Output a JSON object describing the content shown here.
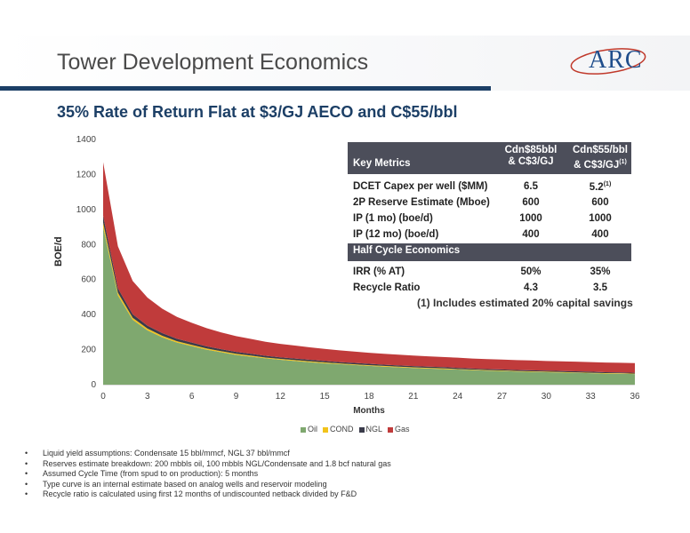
{
  "header": {
    "title": "Tower Development Economics",
    "logo_text": "ARC",
    "subtitle": "35% Rate of Return Flat at $3/GJ AECO and C$55/bbl"
  },
  "metrics": {
    "header_label": "Key Metrics",
    "col1_line1": "Cdn$85bbl",
    "col1_line2": "& C$3/GJ",
    "col2_line1": "Cdn$55/bbl",
    "col2_line2": "& C$3/GJ",
    "col2_sup": "(1)",
    "rows": [
      {
        "label": "DCET Capex per well ($MM)",
        "v1": "6.5",
        "v2": "5.2",
        "v2_sup": "(1)"
      },
      {
        "label": "2P Reserve Estimate (Mboe)",
        "v1": "600",
        "v2": "600"
      },
      {
        "label": "IP (1 mo) (boe/d)",
        "v1": "1000",
        "v2": "1000"
      },
      {
        "label": "IP (12 mo) (boe/d)",
        "v1": "400",
        "v2": "400"
      }
    ],
    "section2_label": "Half Cycle Economics",
    "rows2": [
      {
        "label": "IRR (% AT)",
        "v1": "50%",
        "v2": "35%"
      },
      {
        "label": "Recycle Ratio",
        "v1": "4.3",
        "v2": "3.5"
      }
    ],
    "note": "(1) Includes estimated 20% capital savings"
  },
  "chart_data": {
    "type": "area",
    "stacked": true,
    "xlabel": "Months",
    "ylabel": "BOE/d",
    "xlim": [
      0,
      36
    ],
    "ylim": [
      0,
      1400
    ],
    "x_ticks": [
      0,
      3,
      6,
      9,
      12,
      15,
      18,
      21,
      24,
      27,
      30,
      33,
      36
    ],
    "y_ticks": [
      0,
      200,
      400,
      600,
      800,
      1000,
      1200,
      1400
    ],
    "x": [
      0,
      1,
      2,
      3,
      4,
      5,
      6,
      7,
      8,
      9,
      10,
      11,
      12,
      13,
      14,
      15,
      16,
      17,
      18,
      19,
      20,
      21,
      22,
      23,
      24,
      25,
      26,
      27,
      28,
      29,
      30,
      31,
      32,
      33,
      34,
      35,
      36
    ],
    "series": [
      {
        "name": "Oil",
        "color": "#7fa86f",
        "values": [
          900,
          510,
          370,
          310,
          270,
          240,
          220,
          200,
          185,
          170,
          160,
          150,
          142,
          135,
          128,
          122,
          117,
          112,
          107,
          103,
          99,
          95,
          92,
          89,
          86,
          83,
          80,
          78,
          75,
          73,
          71,
          69,
          67,
          65,
          63,
          62,
          60
        ]
      },
      {
        "name": "COND",
        "color": "#f2c31b",
        "values": [
          25,
          15,
          12,
          10,
          9,
          8,
          7,
          7,
          6,
          6,
          6,
          5,
          5,
          5,
          5,
          5,
          4,
          4,
          4,
          4,
          4,
          4,
          4,
          4,
          3,
          3,
          3,
          3,
          3,
          3,
          3,
          3,
          3,
          3,
          3,
          3,
          3
        ]
      },
      {
        "name": "NGL",
        "color": "#3a3b4a",
        "values": [
          40,
          25,
          20,
          17,
          15,
          14,
          13,
          12,
          11,
          11,
          10,
          10,
          9,
          9,
          9,
          8,
          8,
          8,
          8,
          7,
          7,
          7,
          7,
          7,
          7,
          6,
          6,
          6,
          6,
          6,
          6,
          6,
          6,
          6,
          5,
          5,
          5
        ]
      },
      {
        "name": "Gas",
        "color": "#c03b3b",
        "values": [
          305,
          240,
          190,
          160,
          140,
          125,
          113,
          104,
          96,
          90,
          85,
          80,
          77,
          74,
          71,
          69,
          67,
          65,
          63,
          62,
          61,
          60,
          59,
          58,
          58,
          57,
          57,
          56,
          56,
          56,
          55,
          55,
          55,
          55,
          55,
          55,
          55
        ]
      }
    ],
    "legend_position": "bottom"
  },
  "bullets": [
    "Liquid yield assumptions:  Condensate 15 bbl/mmcf, NGL 37 bbl/mmcf",
    "Reserves estimate breakdown: 200 mbbls oil, 100 mbbls NGL/Condensate and 1.8 bcf natural gas",
    "Assumed Cycle Time (from spud to on production):  5 months",
    "Type curve is an internal estimate based on analog wells and reservoir modeling",
    "Recycle ratio is calculated using first 12 months of undiscounted netback divided by F&D"
  ]
}
